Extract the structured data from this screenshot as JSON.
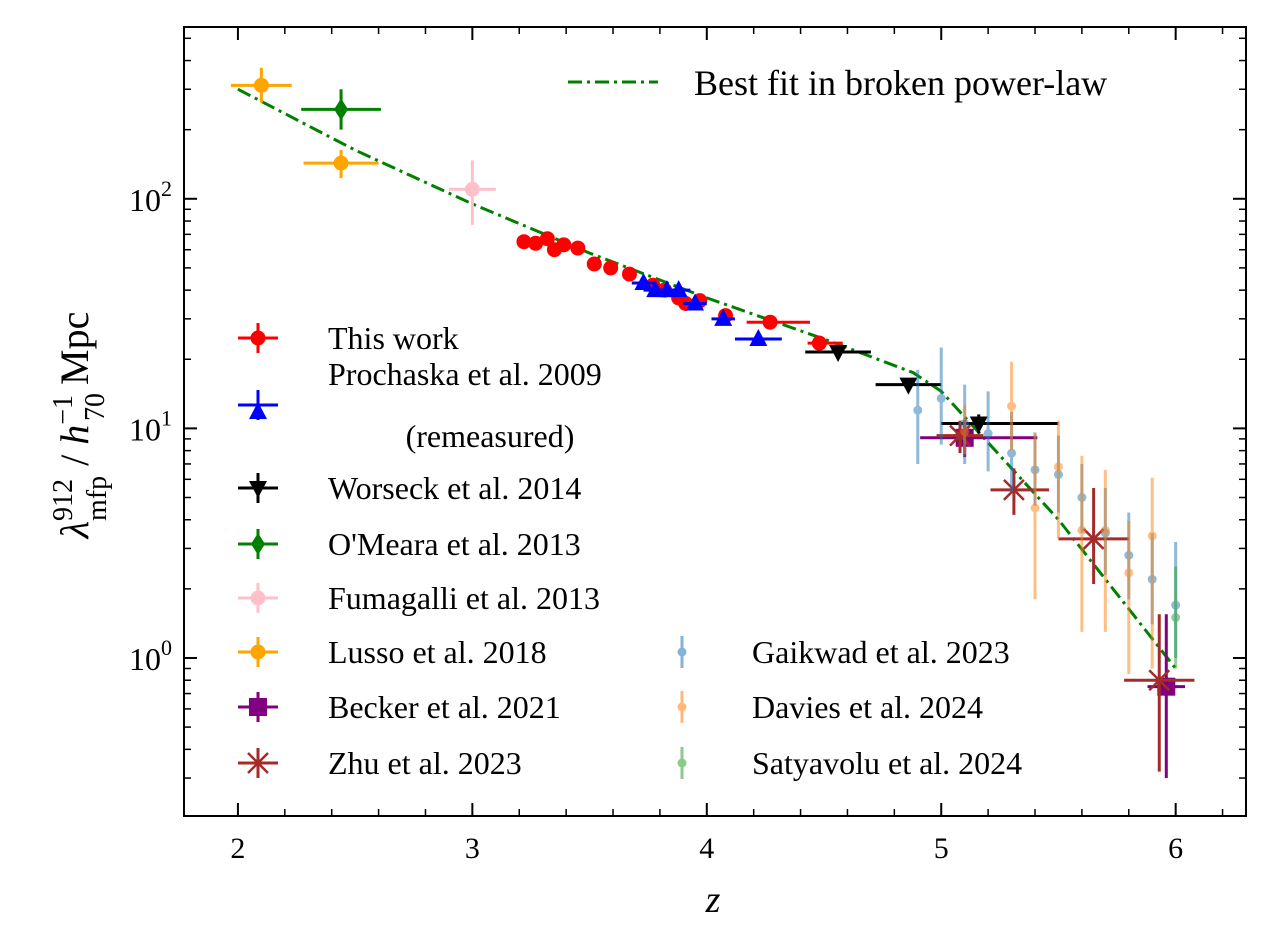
{
  "chart_data": {
    "type": "scatter",
    "xlabel": "z",
    "ylabel": {
      "base": "λ",
      "sup": "912",
      "sub": "mfp",
      "mid": " / ",
      "h": "h",
      "h_sup": "−1",
      "h_sub": "70",
      "unit": "Mpc"
    },
    "x_scale": "linear",
    "y_scale": "log",
    "xlim": [
      1.77,
      6.3
    ],
    "ylim": [
      0.205,
      560
    ],
    "x_ticks": [
      "2",
      "3",
      "4",
      "5",
      "6"
    ],
    "y_ticks": [
      {
        "value": 1,
        "base": "10",
        "exp": "0"
      },
      {
        "value": 10,
        "base": "10",
        "exp": "1"
      },
      {
        "value": 100,
        "base": "10",
        "exp": "2"
      }
    ],
    "fit": {
      "name": "Best fit in broken power-law",
      "color": "#008000",
      "points": [
        [
          2.0,
          300
        ],
        [
          2.5,
          163
        ],
        [
          3.0,
          95
        ],
        [
          3.5,
          58
        ],
        [
          4.0,
          37
        ],
        [
          4.5,
          24.5
        ],
        [
          4.88,
          17.5
        ],
        [
          5.0,
          14.5
        ],
        [
          5.5,
          4.0
        ],
        [
          6.0,
          0.9
        ]
      ]
    },
    "series": [
      {
        "name": "This work",
        "color": "#ff0000",
        "marker": "circle",
        "points": [
          {
            "x": 3.22,
            "y": 65
          },
          {
            "x": 3.27,
            "y": 64
          },
          {
            "x": 3.32,
            "y": 67
          },
          {
            "x": 3.35,
            "y": 60
          },
          {
            "x": 3.39,
            "y": 63
          },
          {
            "x": 3.45,
            "y": 61
          },
          {
            "x": 3.52,
            "y": 52
          },
          {
            "x": 3.59,
            "y": 50
          },
          {
            "x": 3.67,
            "y": 47
          },
          {
            "x": 3.77,
            "y": 42
          },
          {
            "x": 3.82,
            "y": 40
          },
          {
            "x": 3.88,
            "y": 37
          },
          {
            "x": 3.91,
            "y": 35
          },
          {
            "x": 3.97,
            "y": 36
          },
          {
            "x": 4.08,
            "y": 31
          },
          {
            "x": 4.27,
            "y": 29,
            "xerr": [
              0.1,
              0.17
            ]
          },
          {
            "x": 4.48,
            "y": 23.5,
            "xerr": [
              0.05,
              0.1
            ]
          }
        ]
      },
      {
        "name": "Prochaska et al. 2009 (remeasured)",
        "color": "#0000ff",
        "marker": "triangle-up",
        "points": [
          {
            "x": 3.73,
            "y": 43,
            "xerr": [
              0.05,
              0.05
            ]
          },
          {
            "x": 3.78,
            "y": 40,
            "xerr": [
              0.05,
              0.05
            ]
          },
          {
            "x": 3.83,
            "y": 40,
            "xerr": [
              0.05,
              0.05
            ]
          },
          {
            "x": 3.88,
            "y": 40,
            "xerr": [
              0.05,
              0.05
            ]
          },
          {
            "x": 3.95,
            "y": 35,
            "xerr": [
              0.05,
              0.05
            ]
          },
          {
            "x": 4.07,
            "y": 30,
            "xerr": [
              0.05,
              0.05
            ]
          },
          {
            "x": 4.22,
            "y": 24.5,
            "xerr": [
              0.1,
              0.1
            ]
          }
        ]
      },
      {
        "name": "Worseck et al. 2014",
        "color": "#000000",
        "marker": "triangle-down",
        "points": [
          {
            "x": 4.56,
            "y": 21.5,
            "xerr": [
              0.14,
              0.14
            ],
            "yerr": [
              1.2,
              1.2
            ]
          },
          {
            "x": 4.86,
            "y": 15.5,
            "xerr": [
              0.14,
              0.14
            ],
            "yerr": [
              1.0,
              1.0
            ]
          },
          {
            "x": 5.16,
            "y": 10.5,
            "xerr": [
              0.16,
              0.34
            ],
            "yerr": [
              1.0,
              1.0
            ]
          }
        ]
      },
      {
        "name": "O'Meara et al. 2013",
        "color": "#008000",
        "marker": "diamond",
        "points": [
          {
            "x": 2.44,
            "y": 245,
            "xerr": [
              0.17,
              0.17
            ],
            "yerr": [
              45,
              55
            ]
          }
        ]
      },
      {
        "name": "Fumagalli et al. 2013",
        "color": "#ffc0cb",
        "marker": "circle",
        "points": [
          {
            "x": 3.0,
            "y": 110,
            "xerr": [
              0.1,
              0.1
            ],
            "yerr": [
              33,
              37
            ]
          }
        ]
      },
      {
        "name": "Lusso et al. 2018",
        "color": "#ffa500",
        "marker": "circle",
        "points": [
          {
            "x": 2.1,
            "y": 312,
            "xerr": [
              0.13,
              0.13
            ],
            "yerr": [
              50,
              60
            ]
          },
          {
            "x": 2.44,
            "y": 143,
            "xerr": [
              0.16,
              0.16
            ],
            "yerr": [
              20,
              20
            ]
          }
        ]
      },
      {
        "name": "Becker et al. 2021",
        "color": "#800080",
        "marker": "square",
        "points": [
          {
            "x": 5.1,
            "y": 9.1,
            "xerr": [
              0.19,
              0.31
            ],
            "yerr": [
              1.6,
              1.8
            ]
          },
          {
            "x": 5.96,
            "y": 0.75,
            "xerr": [
              0.08,
              0.08
            ],
            "yerr": [
              0.45,
              0.8
            ]
          }
        ]
      },
      {
        "name": "Zhu et al. 2023",
        "color": "#a52a2a",
        "marker": "x",
        "points": [
          {
            "x": 5.08,
            "y": 9.3,
            "xerr": [
              0.1,
              0.1
            ],
            "yerr": [
              1.5,
              1.5
            ]
          },
          {
            "x": 5.31,
            "y": 5.4,
            "xerr": [
              0.1,
              0.15
            ],
            "yerr": [
              1.2,
              1.3
            ]
          },
          {
            "x": 5.65,
            "y": 3.3,
            "xerr": [
              0.15,
              0.15
            ],
            "yerr": [
              1.2,
              2.2
            ]
          },
          {
            "x": 5.93,
            "y": 0.8,
            "xerr": [
              0.15,
              0.15
            ],
            "yerr": [
              0.48,
              0.75
            ]
          }
        ]
      },
      {
        "name": "Gaikwad et al. 2023",
        "color": "#1f77b4",
        "marker": "dot",
        "faint": true,
        "points": [
          {
            "x": 4.9,
            "y": 12.0,
            "yerr": [
              5,
              6
            ]
          },
          {
            "x": 5.0,
            "y": 13.5,
            "yerr": [
              5,
              9
            ]
          },
          {
            "x": 5.1,
            "y": 10.5,
            "yerr": [
              3.5,
              5
            ]
          },
          {
            "x": 5.2,
            "y": 9.5,
            "yerr": [
              3,
              5
            ]
          },
          {
            "x": 5.3,
            "y": 7.8,
            "yerr": [
              2.5,
              4
            ]
          },
          {
            "x": 5.4,
            "y": 6.6,
            "yerr": [
              2,
              3
            ]
          },
          {
            "x": 5.5,
            "y": 6.3,
            "yerr": [
              2,
              3
            ]
          },
          {
            "x": 5.6,
            "y": 5.0,
            "yerr": [
              1.5,
              2
            ]
          },
          {
            "x": 5.7,
            "y": 3.5,
            "yerr": [
              1.2,
              2
            ]
          },
          {
            "x": 5.8,
            "y": 2.8,
            "yerr": [
              1.0,
              1.5
            ]
          },
          {
            "x": 5.9,
            "y": 2.2,
            "yerr": [
              0.8,
              1.3
            ]
          },
          {
            "x": 6.0,
            "y": 1.7,
            "yerr": [
              0.7,
              1.5
            ]
          }
        ]
      },
      {
        "name": "Davies et al. 2024",
        "color": "#ff7f0e",
        "marker": "dot",
        "faint": true,
        "points": [
          {
            "x": 5.1,
            "y": 9.7,
            "yerr": [
              2,
              3
            ]
          },
          {
            "x": 5.3,
            "y": 12.5,
            "yerr": [
              4.5,
              7
            ]
          },
          {
            "x": 5.4,
            "y": 4.5,
            "yerr": [
              2.7,
              5
            ]
          },
          {
            "x": 5.5,
            "y": 6.8,
            "yerr": [
              3.5,
              4
            ]
          },
          {
            "x": 5.6,
            "y": 3.6,
            "yerr": [
              2.3,
              4
            ]
          },
          {
            "x": 5.7,
            "y": 3.6,
            "yerr": [
              2.3,
              3
            ]
          },
          {
            "x": 5.8,
            "y": 2.35,
            "yerr": [
              1.5,
              1.6
            ]
          },
          {
            "x": 5.9,
            "y": 3.4,
            "yerr": [
              2.5,
              2.7
            ]
          }
        ]
      },
      {
        "name": "Satyavolu et al. 2024",
        "color": "#2ca02c",
        "marker": "dot",
        "faint": true,
        "points": [
          {
            "x": 6.0,
            "y": 1.5,
            "yerr": [
              0.6,
              1.0
            ]
          }
        ]
      }
    ],
    "legend": {
      "placement": "lower-left",
      "fit_placement": "top-right",
      "entries": [
        {
          "text": "This work"
        },
        {
          "text": "Prochaska et al. 2009",
          "text2": "(remeasured)"
        },
        {
          "text": "Worseck et al. 2014"
        },
        {
          "text": "O'Meara et al. 2013"
        },
        {
          "text": "Fumagalli et al. 2013"
        },
        {
          "text": "Lusso et al. 2018"
        },
        {
          "text": "Becker et al. 2021"
        },
        {
          "text": "Zhu et al. 2023"
        },
        {
          "text": "Gaikwad et al. 2023"
        },
        {
          "text": "Davies et al. 2024"
        },
        {
          "text": "Satyavolu et al. 2024"
        }
      ]
    }
  }
}
